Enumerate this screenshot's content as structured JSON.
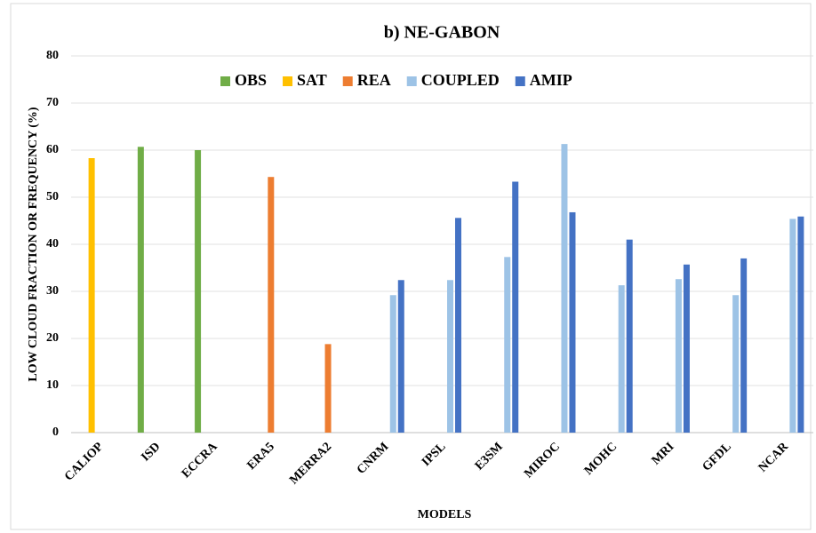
{
  "chart_data": {
    "type": "bar",
    "title": "b) NE-GABON",
    "x_label": "MODELS",
    "y_label": "LOW CLOUD FRACTION OR FREQUENCY (%)",
    "categories": [
      "CALIOP",
      "ISD",
      "ECCRA",
      "ERA5",
      "MERRA2",
      "CNRM",
      "IPSL",
      "E3SM",
      "MIROC",
      "MOHC",
      "MRI",
      "GFDL",
      "NCAR"
    ],
    "series": [
      {
        "name": "OBS",
        "color": "#70ad47",
        "values": [
          null,
          60.7,
          60,
          null,
          null,
          null,
          null,
          null,
          null,
          null,
          null,
          null,
          null
        ]
      },
      {
        "name": "SAT",
        "color": "#ffc000",
        "values": [
          58.3,
          null,
          null,
          null,
          null,
          null,
          null,
          null,
          null,
          null,
          null,
          null,
          null
        ]
      },
      {
        "name": "REA",
        "color": "#ed7d31",
        "values": [
          null,
          null,
          null,
          54.3,
          18.8,
          null,
          null,
          null,
          null,
          null,
          null,
          null,
          null
        ]
      },
      {
        "name": "COUPLED",
        "color": "#9dc3e6",
        "values": [
          null,
          null,
          null,
          null,
          null,
          29.2,
          32.4,
          37.3,
          61.3,
          31.3,
          32.6,
          29.2,
          45.4
        ]
      },
      {
        "name": "AMIP",
        "color": "#4472c4",
        "values": [
          null,
          null,
          null,
          null,
          null,
          32.4,
          45.6,
          53.3,
          46.8,
          41,
          35.7,
          37,
          45.9
        ]
      }
    ],
    "ylim": [
      0,
      80
    ],
    "yticks": [
      0,
      10,
      20,
      30,
      40,
      50,
      60,
      70,
      80
    ],
    "grid": true,
    "legend": "top"
  }
}
